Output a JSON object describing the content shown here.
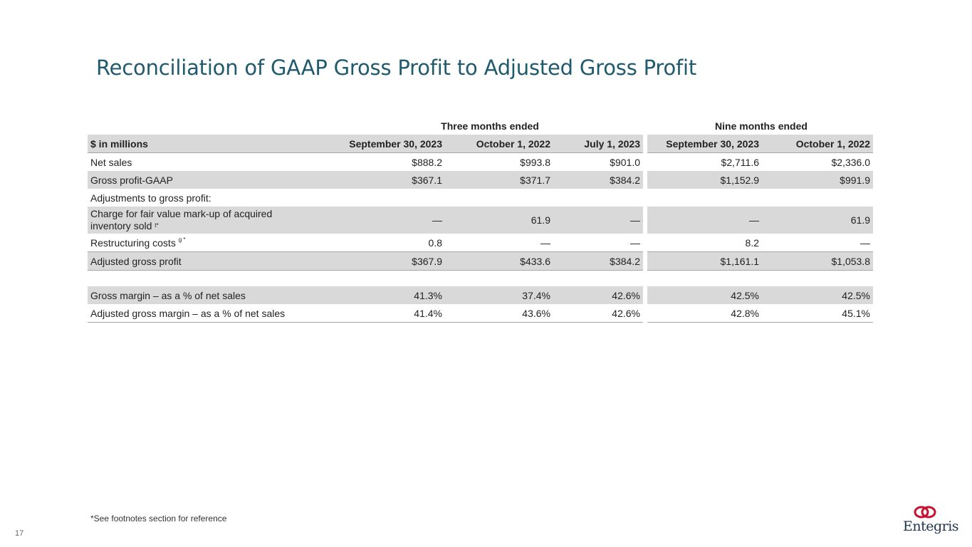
{
  "title": "Reconciliation of GAAP Gross Profit to Adjusted Gross Profit",
  "groups": {
    "three": "Three months ended",
    "nine": "Nine months ended"
  },
  "headers": {
    "label": "$ in millions",
    "c1": "September 30, 2023",
    "c2": "October 1, 2022",
    "c3": "July 1, 2023",
    "c4": "September 30, 2023",
    "c5": "October 1, 2022"
  },
  "rows": {
    "net_sales": {
      "label": "Net sales",
      "c1": "$888.2",
      "c2": "$993.8",
      "c3": "$901.0",
      "c4": "$2,711.6",
      "c5": "$2,336.0"
    },
    "gross_profit": {
      "label": "Gross profit-GAAP",
      "c1": "$367.1",
      "c2": "$371.7",
      "c3": "$384.2",
      "c4": "$1,152.9",
      "c5": "$991.9"
    },
    "adjustments": {
      "label": "Adjustments to gross profit:"
    },
    "charge": {
      "label_line1": "Charge for fair value mark-up of acquired",
      "label_line2": "inventory sold",
      "sup": "t*",
      "c1": "—",
      "c2": "61.9",
      "c3": "—",
      "c4": "—",
      "c5": "61.9"
    },
    "restructuring": {
      "label": "Restructuring costs",
      "sup": "g *",
      "c1": "0.8",
      "c2": "—",
      "c3": "—",
      "c4": "8.2",
      "c5": "—"
    },
    "adjusted_gp": {
      "label": "Adjusted gross profit",
      "c1": "$367.9",
      "c2": "$433.6",
      "c3": "$384.2",
      "c4": "$1,161.1",
      "c5": "$1,053.8"
    },
    "gross_margin": {
      "label": "Gross margin – as a % of net sales",
      "c1": "41.3%",
      "c2": "37.4%",
      "c3": "42.6%",
      "c4": "42.5%",
      "c5": "42.5%"
    },
    "adj_margin": {
      "label": "Adjusted gross margin – as a % of net sales",
      "c1": "41.4%",
      "c2": "43.6%",
      "c3": "42.6%",
      "c4": "42.8%",
      "c5": "45.1%"
    }
  },
  "footnote": "*See footnotes section for reference",
  "page_number": "17",
  "logo": {
    "text": "Entegris",
    "color": "#1f3550",
    "mark_color": "#c8102e"
  },
  "colors": {
    "title": "#1f5a6e",
    "shade": "#d9d9d9",
    "rule": "#a6a6a6"
  }
}
